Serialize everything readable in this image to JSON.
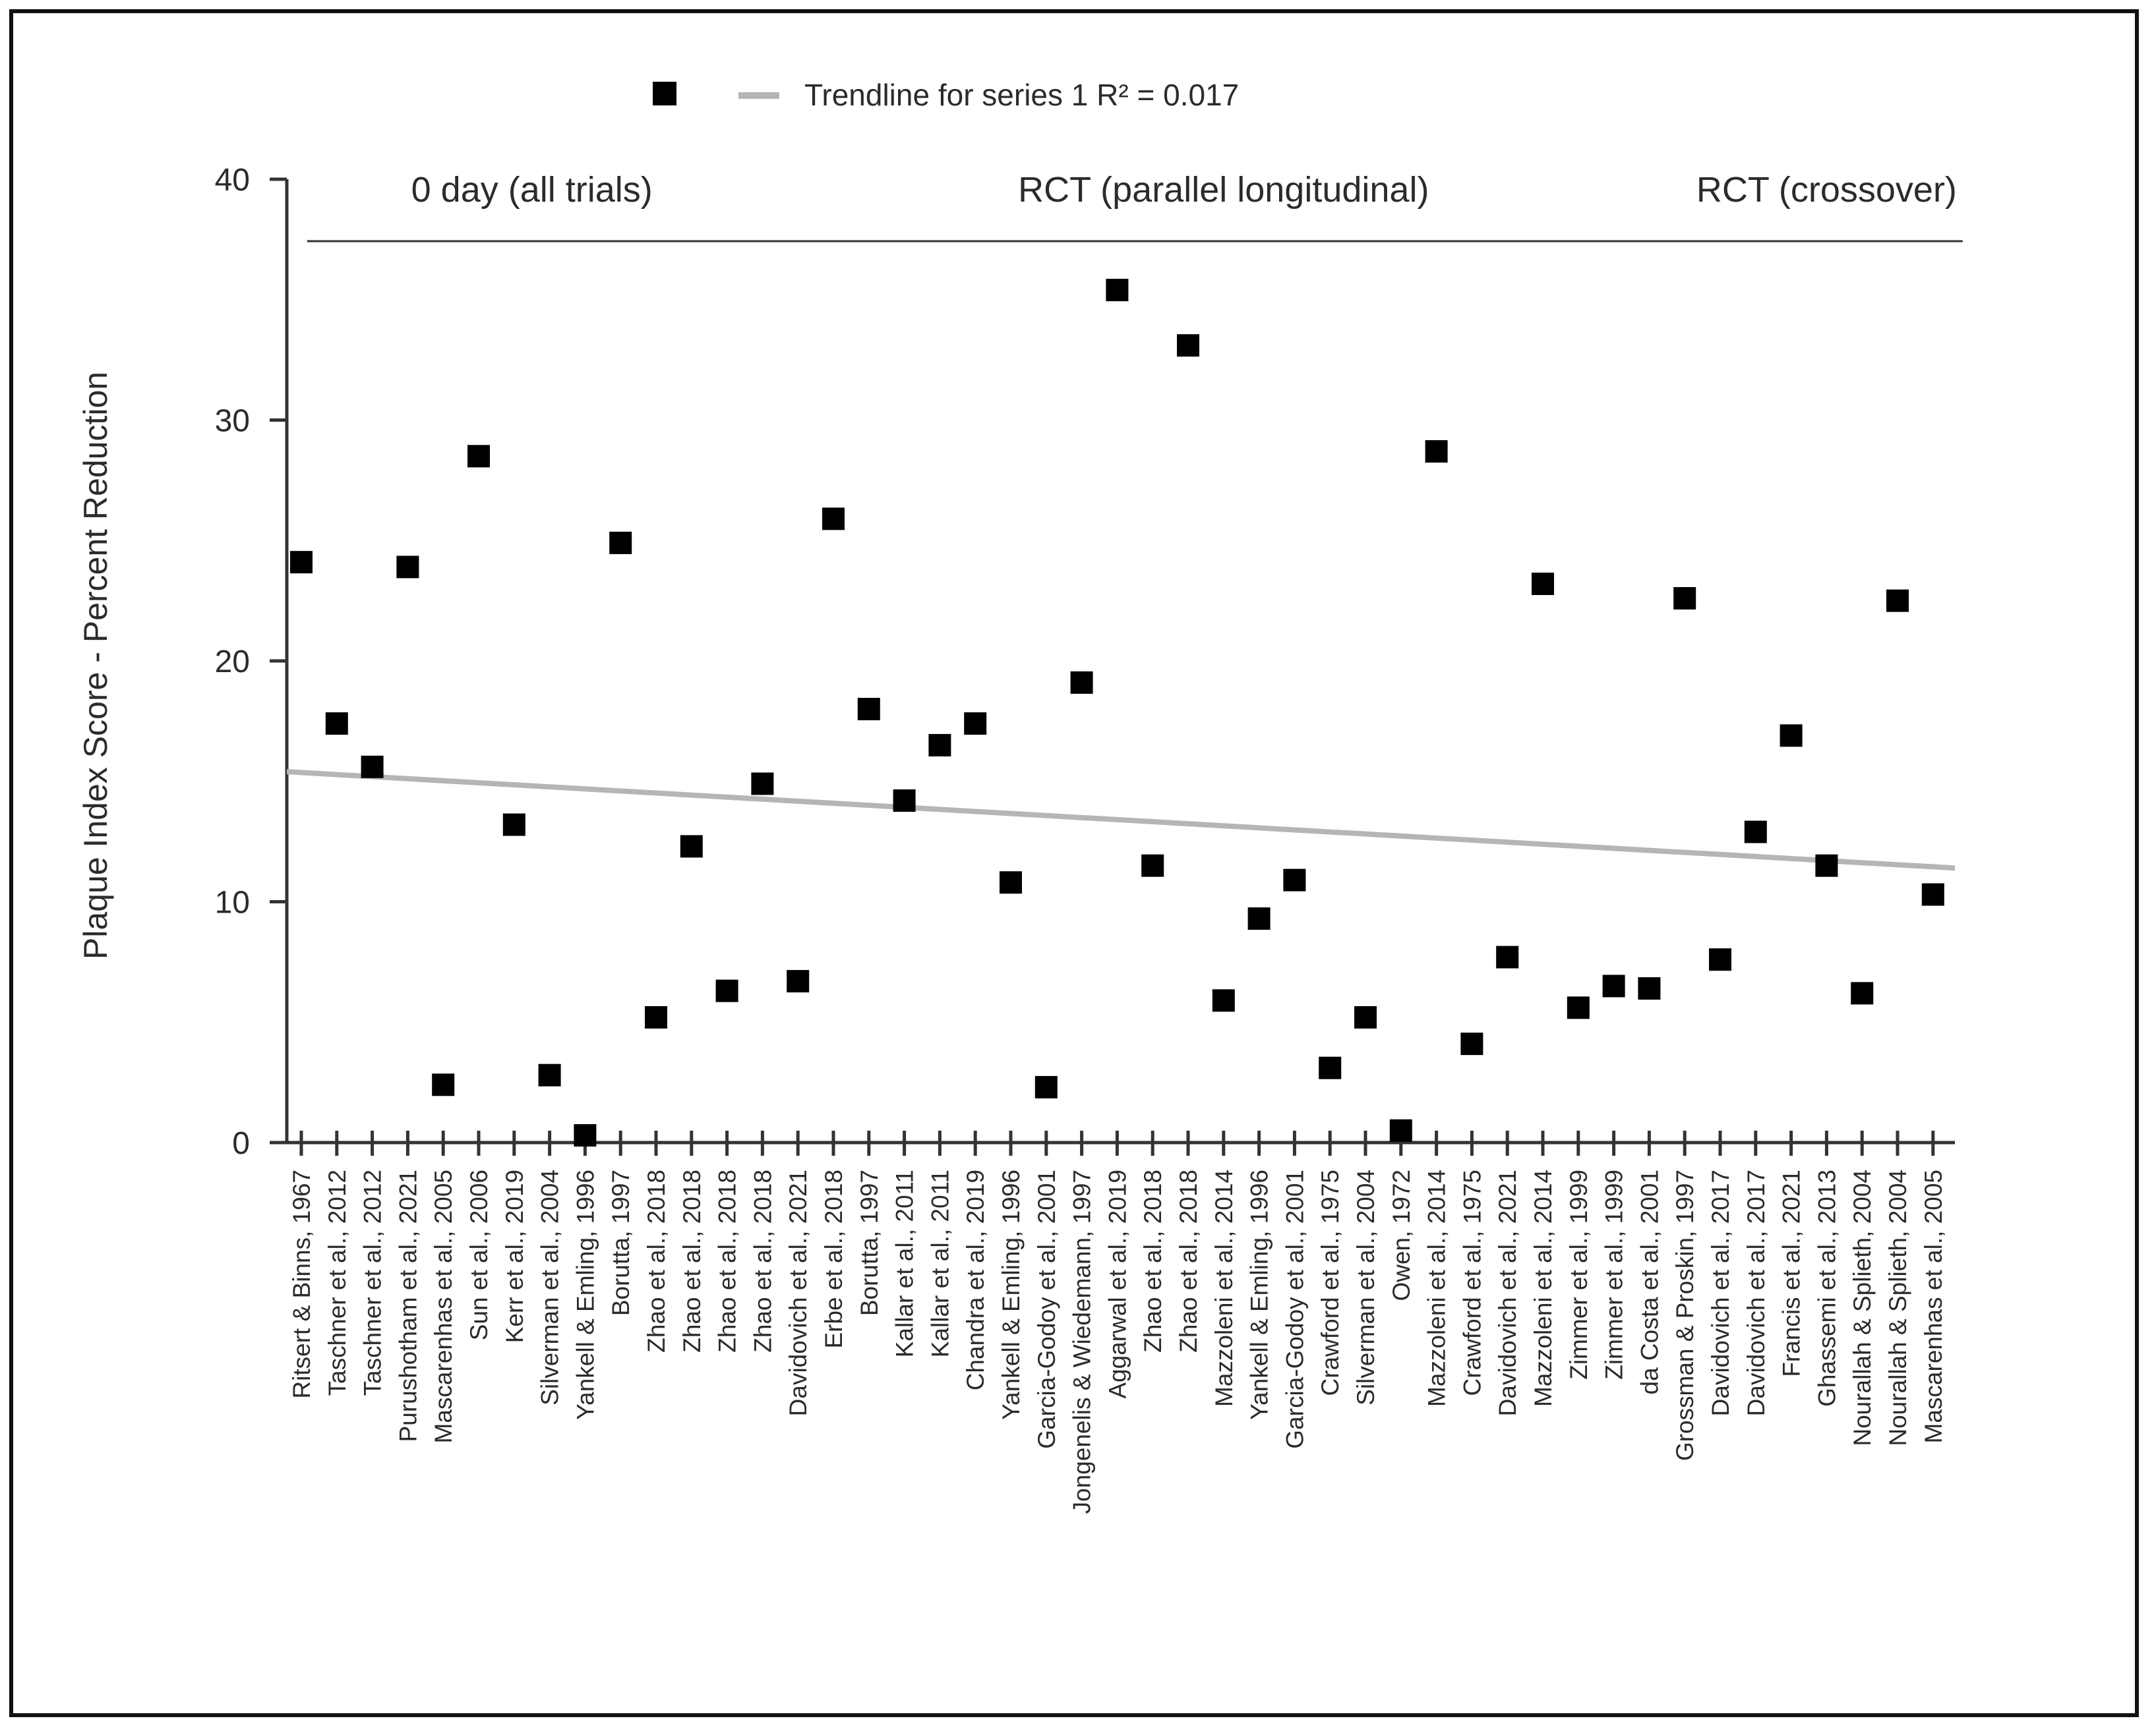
{
  "chart_data": {
    "type": "scatter",
    "title": "",
    "ylabel": "Plaque Index Score - Percent Reduction",
    "xlabel": "",
    "ylim": [
      0,
      40
    ],
    "yticks": [
      0,
      10,
      20,
      30,
      40
    ],
    "grid": false,
    "legend": {
      "placement": "top-center",
      "trendline_label": "Trendline for series 1 R² = 0.017"
    },
    "colors": {
      "marker": "#000000",
      "trendline": "#b5b5b5",
      "axis": "#333333"
    },
    "categories": [
      "Ritsert & Binns, 1967",
      "Taschner et al., 2012",
      "Taschner et al., 2012",
      "Purushotham et al., 2021",
      "Mascarenhas et al., 2005",
      "Sun et al., 2006",
      "Kerr et al., 2019",
      "Silverman et al., 2004",
      "Yankell & Emling, 1996",
      "Borutta, 1997",
      "Zhao et al., 2018",
      "Zhao et al., 2018",
      "Zhao et al., 2018",
      "Zhao et al., 2018",
      "Davidovich et al., 2021",
      "Erbe et al., 2018",
      "Borutta, 1997",
      "Kallar et al., 2011",
      "Kallar et al., 2011",
      "Chandra et al., 2019",
      "Yankell & Emling, 1996",
      "Garcia-Godoy et al., 2001",
      "Jongenelis & Wiedemann, 1997",
      "Aggarwal et al., 2019",
      "Zhao et al., 2018",
      "Zhao et al., 2018",
      "Mazzoleni et al., 2014",
      "Yankell & Emling, 1996",
      "Garcia-Godoy et al., 2001",
      "Crawford et al., 1975",
      "Silverman et al., 2004",
      "Owen, 1972",
      "Mazzoleni et al., 2014",
      "Crawford et al., 1975",
      "Davidovich et al., 2021",
      "Mazzoleni et al., 2014",
      "Zimmer et al., 1999",
      "Zimmer et al., 1999",
      "da Costa et al., 2001",
      "Grossman & Proskin, 1997",
      "Davidovich et al., 2017",
      "Davidovich et al., 2017",
      "Francis et al., 2021",
      "Ghassemi et al., 2013",
      "Nourallah & Splieth, 2004",
      "Nourallah & Splieth, 2004",
      "Mascarenhas et al., 2005"
    ],
    "series": [
      {
        "values": [
          24.1,
          17.4,
          15.6,
          23.9,
          2.4,
          28.5,
          13.2,
          2.8,
          0.3,
          24.9,
          5.2,
          12.3,
          6.3,
          14.9,
          6.7,
          25.9,
          18.0,
          14.2,
          16.5,
          17.4,
          10.8,
          2.3,
          19.1,
          35.4,
          11.5,
          33.1,
          5.9,
          9.3,
          10.9,
          3.1,
          5.2,
          0.5,
          28.7,
          4.1,
          7.7,
          23.2,
          5.6,
          6.5,
          6.4,
          22.6,
          7.6,
          12.9,
          16.9,
          11.5,
          6.2,
          22.5,
          10.3
        ]
      }
    ],
    "trendline": {
      "start": 15.4,
      "end": 11.4
    },
    "groups": [
      {
        "label": "0 day (all trials)",
        "from": 1,
        "to": 12
      },
      {
        "label": "RCT (parallel longitudinal)",
        "from": 13,
        "to": 39
      },
      {
        "label": "RCT (crossover)",
        "from": 40,
        "to": 46
      }
    ]
  }
}
